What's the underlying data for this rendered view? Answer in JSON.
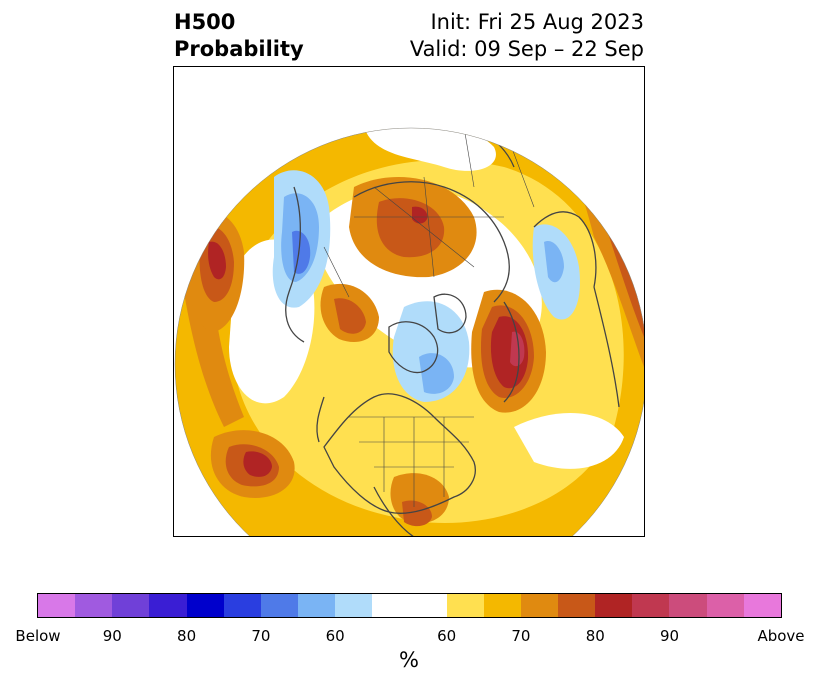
{
  "title": {
    "left_line1": "H500",
    "left_line2": "Probability",
    "right_line1": "Init: Fri 25 Aug 2023",
    "right_line2": "Valid: 09 Sep – 22 Sep"
  },
  "colorbar": {
    "unit": "%",
    "colors": [
      "#d878e8",
      "#a05ae0",
      "#7040d8",
      "#3a1ed4",
      "#0000cc",
      "#2a3ee0",
      "#4f7ae8",
      "#7ab4f4",
      "#b0dcfa",
      "#ffffff",
      "#ffe050",
      "#f4b800",
      "#e08a10",
      "#c85818",
      "#b02424",
      "#c03850",
      "#cc4c7c",
      "#dc60a8",
      "#e878dc"
    ],
    "labels": [
      "Below",
      "90",
      "80",
      "70",
      "60",
      "60",
      "70",
      "80",
      "90",
      "Above"
    ]
  },
  "map": {
    "projection": "north polar stereographic",
    "colors": {
      "below_60": "#b0dcfa",
      "below_70": "#7ab4f4",
      "below_80": "#4f7ae8",
      "above_60": "#ffe050",
      "above_65": "#f4b800",
      "above_70": "#e08a10",
      "above_75": "#c85818",
      "above_80": "#b02424",
      "above_85": "#c03850",
      "coast": "#444444"
    }
  }
}
